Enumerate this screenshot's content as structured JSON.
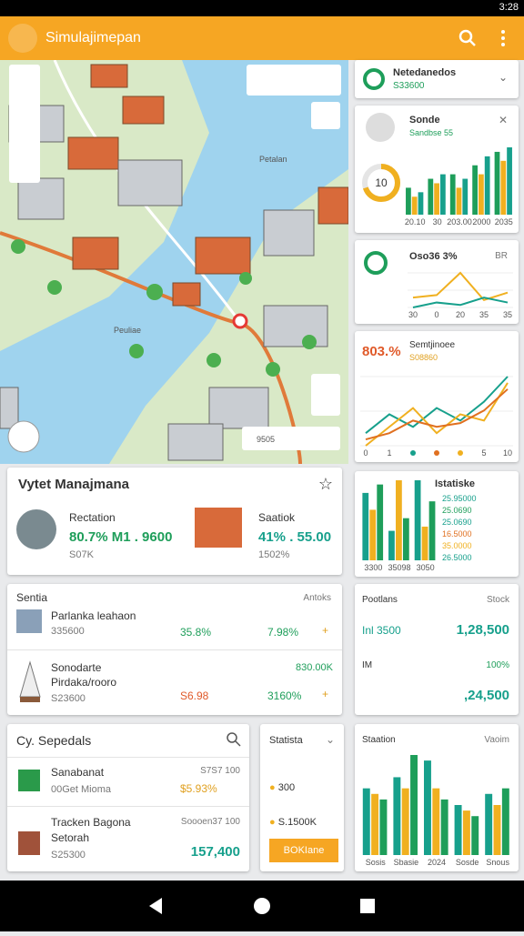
{
  "status_bar": {
    "time": "3:28"
  },
  "app_bar": {
    "title": "Simulajimepan"
  },
  "map": {
    "labels": [
      "Petalan",
      "Peuliae",
      "9505"
    ]
  },
  "panel_1": {
    "title": "Netedanedos",
    "subtitle": "S33600"
  },
  "panel_2": {
    "title": "Sonde",
    "subtitle": "Sandbse 55",
    "ring_label": "10",
    "ring_value": 70,
    "chart": {
      "type": "bar",
      "categories": [
        "20.10",
        "30",
        "203.00",
        "2000",
        "2035"
      ],
      "series": [
        {
          "color": "#1e9e5a",
          "values": [
            30,
            40,
            45,
            55,
            70
          ]
        },
        {
          "color": "#f0b020",
          "values": [
            20,
            35,
            30,
            45,
            60
          ]
        },
        {
          "color": "#17a08c",
          "values": [
            25,
            45,
            40,
            65,
            75
          ]
        }
      ]
    }
  },
  "panel_3": {
    "title": "Oso36 3%",
    "tag": "BR",
    "chart": {
      "type": "line",
      "categories": [
        "30",
        "0",
        "20",
        "35",
        "35"
      ],
      "series": [
        {
          "color": "#f0b020",
          "values": [
            30,
            32,
            50,
            28,
            34
          ]
        },
        {
          "color": "#17a08c",
          "values": [
            22,
            26,
            24,
            30,
            26
          ]
        }
      ]
    }
  },
  "panel_4": {
    "value": "803.%",
    "title": "Semtjinoee",
    "subtitle": "S08860",
    "chart": {
      "type": "line",
      "categories": [
        "0",
        "1",
        null,
        null,
        null,
        "5",
        "10"
      ],
      "series": [
        {
          "color": "#17a08c",
          "values": [
            40,
            55,
            45,
            60,
            50,
            65,
            85
          ]
        },
        {
          "color": "#f0b020",
          "values": [
            30,
            45,
            60,
            40,
            55,
            50,
            80
          ]
        },
        {
          "color": "#e07020",
          "values": [
            35,
            40,
            50,
            45,
            48,
            58,
            75
          ]
        }
      ]
    }
  },
  "panel_5": {
    "title": "Istatiske",
    "legend": [
      "25.95000",
      "25.0690",
      "25.0690",
      "16.5000",
      "35.0000",
      "26.5000"
    ],
    "chart": {
      "type": "bar",
      "categories": [
        "3300",
        "35098",
        "3050"
      ],
      "series": [
        {
          "color": "#17a08c",
          "values": [
            80,
            35,
            95
          ]
        },
        {
          "color": "#f0b020",
          "values": [
            60,
            95,
            40
          ]
        },
        {
          "color": "#1e9e5a",
          "values": [
            90,
            50,
            70
          ]
        }
      ]
    }
  },
  "management": {
    "title": "Vytet Manajmana",
    "items": [
      {
        "name": "Rectation",
        "stats": "80.7% M1 . 9600",
        "sub": "S07K"
      },
      {
        "name": "Saatiok",
        "stats": "41% . 55.00",
        "sub": "1502%"
      }
    ]
  },
  "table": {
    "title": "Sentia",
    "action": "Antoks",
    "rows": [
      [
        "Parlanka leahaon",
        "335600",
        "35.8%",
        "7.98%"
      ],
      [
        "Sonodarte Pirdaka/rooro",
        "S23600",
        "S6.98",
        "3160%"
      ]
    ],
    "extra": "830.00K"
  },
  "stock": {
    "title": "Pootlans",
    "action": "Stock",
    "rows": [
      [
        "1,28,500",
        ""
      ],
      [
        ",24,500",
        "100%"
      ]
    ],
    "label": "IM",
    "pre": "Inl 3500"
  },
  "sepedals": {
    "title": "Cy. Sepedals",
    "rows": [
      [
        "Sanabanat",
        "S7S7 100",
        "00Get Mioma",
        "$5.93%"
      ],
      [
        "Tracken Bagona Setorah",
        "Soooen37 100",
        "S25300",
        "157,400"
      ]
    ]
  },
  "statista": {
    "title": "Statista",
    "items": [
      "300",
      "S.1500K"
    ],
    "button": "BOKIane"
  },
  "station": {
    "title": "Staation",
    "action": "Vaoim",
    "chart": {
      "type": "bar",
      "categories": [
        "Sosis",
        "Sbasie",
        "2024",
        "Sosde",
        "Snous"
      ],
      "series": [
        {
          "color": "#17a08c",
          "values": [
            60,
            70,
            85,
            45,
            55
          ]
        },
        {
          "color": "#f0b020",
          "values": [
            55,
            60,
            60,
            40,
            45
          ]
        },
        {
          "color": "#1e9e5a",
          "values": [
            50,
            90,
            50,
            35,
            60
          ]
        }
      ]
    }
  }
}
